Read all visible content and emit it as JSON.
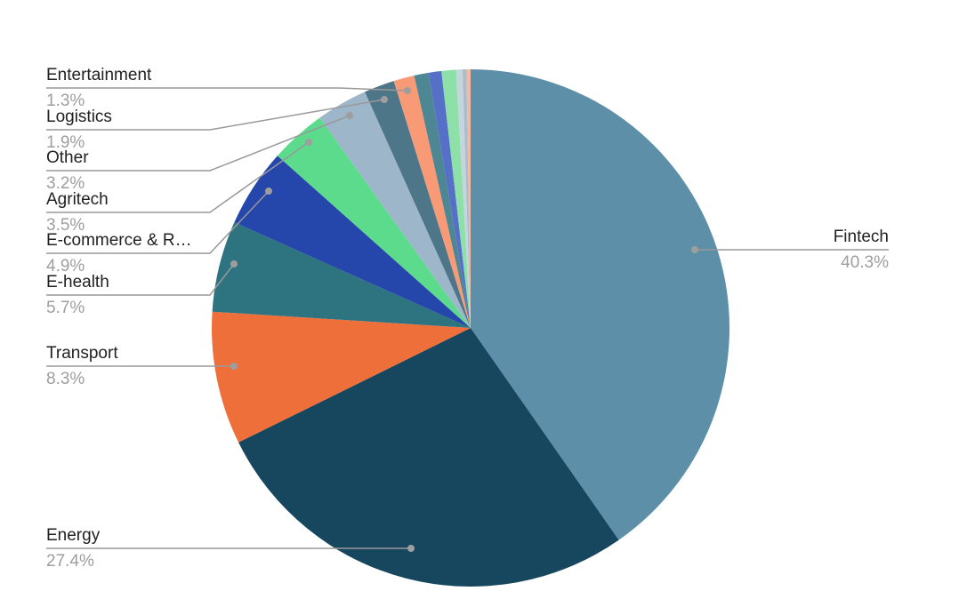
{
  "chart_data": {
    "type": "pie",
    "title": "",
    "unit": "%",
    "direction": "clockwise",
    "start_angle_deg": 0,
    "legend_position": "none",
    "callout_labels": true,
    "slices": [
      {
        "label": "Fintech",
        "value": 40.3,
        "pct_label": "40.3%",
        "color": "#5e8fa9",
        "labeled": true
      },
      {
        "label": "Energy",
        "value": 27.4,
        "pct_label": "27.4%",
        "color": "#16475f",
        "labeled": true
      },
      {
        "label": "Transport",
        "value": 8.3,
        "pct_label": "8.3%",
        "color": "#ef6f3b",
        "labeled": true
      },
      {
        "label": "E-health",
        "value": 5.7,
        "pct_label": "5.7%",
        "color": "#2e7380",
        "labeled": true
      },
      {
        "label": "E-commerce & R…",
        "value": 4.9,
        "pct_label": "4.9%",
        "color": "#2546aa",
        "labeled": true
      },
      {
        "label": "Agritech",
        "value": 3.5,
        "pct_label": "3.5%",
        "color": "#5ddb8d",
        "labeled": true
      },
      {
        "label": "Other",
        "value": 3.2,
        "pct_label": "3.2%",
        "color": "#9db6c9",
        "labeled": true
      },
      {
        "label": "Logistics",
        "value": 1.9,
        "pct_label": "1.9%",
        "color": "#4e7689",
        "labeled": true
      },
      {
        "label": "Entertainment",
        "value": 1.3,
        "pct_label": "1.3%",
        "color": "#f89a76",
        "labeled": true
      },
      {
        "label": "",
        "value": 0.9,
        "color": "#4d8793",
        "labeled": false,
        "estimated": true
      },
      {
        "label": "",
        "value": 0.8,
        "color": "#5670c8",
        "labeled": false,
        "estimated": true
      },
      {
        "label": "",
        "value": 0.9,
        "color": "#8ce0a8",
        "labeled": false,
        "estimated": true
      },
      {
        "label": "",
        "value": 0.4,
        "color": "#c5d5de",
        "labeled": false,
        "estimated": true
      },
      {
        "label": "",
        "value": 0.25,
        "color": "#a9bdcb",
        "labeled": false,
        "estimated": true
      },
      {
        "label": "",
        "value": 0.25,
        "color": "#f6b8a0",
        "labeled": false,
        "estimated": true
      }
    ],
    "styles": {
      "label_color": "#212121",
      "pct_color": "#9e9e9e",
      "leader_line_color": "#999999",
      "background": "#ffffff"
    }
  }
}
